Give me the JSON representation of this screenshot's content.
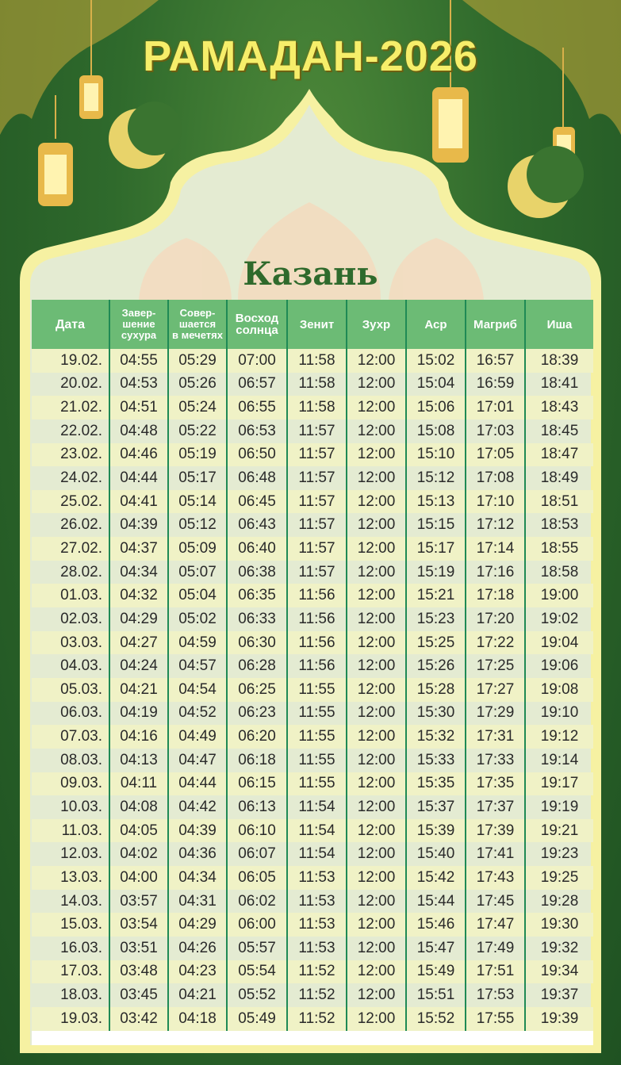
{
  "title": "РАМАДАН-2026",
  "city": "Казань",
  "colors": {
    "background": "#2f6a2c",
    "frame": "#f6f1a2",
    "header": "#6cbb75",
    "stripe": "#f0f2c6",
    "title": "#f6ee6a"
  },
  "table": {
    "headers": [
      [
        "Дата"
      ],
      [
        "Завер-",
        "шение",
        "сухура"
      ],
      [
        "Совер-",
        "шается",
        "в мечетях"
      ],
      [
        "Восход",
        "солнца"
      ],
      [
        "Зенит"
      ],
      [
        "Зухр"
      ],
      [
        "Аср"
      ],
      [
        "Магриб"
      ],
      [
        "Иша"
      ]
    ],
    "rows": [
      [
        "19.02.",
        "04:55",
        "05:29",
        "07:00",
        "11:58",
        "12:00",
        "15:02",
        "16:57",
        "18:39"
      ],
      [
        "20.02.",
        "04:53",
        "05:26",
        "06:57",
        "11:58",
        "12:00",
        "15:04",
        "16:59",
        "18:41"
      ],
      [
        "21.02.",
        "04:51",
        "05:24",
        "06:55",
        "11:58",
        "12:00",
        "15:06",
        "17:01",
        "18:43"
      ],
      [
        "22.02.",
        "04:48",
        "05:22",
        "06:53",
        "11:57",
        "12:00",
        "15:08",
        "17:03",
        "18:45"
      ],
      [
        "23.02.",
        "04:46",
        "05:19",
        "06:50",
        "11:57",
        "12:00",
        "15:10",
        "17:05",
        "18:47"
      ],
      [
        "24.02.",
        "04:44",
        "05:17",
        "06:48",
        "11:57",
        "12:00",
        "15:12",
        "17:08",
        "18:49"
      ],
      [
        "25.02.",
        "04:41",
        "05:14",
        "06:45",
        "11:57",
        "12:00",
        "15:13",
        "17:10",
        "18:51"
      ],
      [
        "26.02.",
        "04:39",
        "05:12",
        "06:43",
        "11:57",
        "12:00",
        "15:15",
        "17:12",
        "18:53"
      ],
      [
        "27.02.",
        "04:37",
        "05:09",
        "06:40",
        "11:57",
        "12:00",
        "15:17",
        "17:14",
        "18:55"
      ],
      [
        "28.02.",
        "04:34",
        "05:07",
        "06:38",
        "11:57",
        "12:00",
        "15:19",
        "17:16",
        "18:58"
      ],
      [
        "01.03.",
        "04:32",
        "05:04",
        "06:35",
        "11:56",
        "12:00",
        "15:21",
        "17:18",
        "19:00"
      ],
      [
        "02.03.",
        "04:29",
        "05:02",
        "06:33",
        "11:56",
        "12:00",
        "15:23",
        "17:20",
        "19:02"
      ],
      [
        "03.03.",
        "04:27",
        "04:59",
        "06:30",
        "11:56",
        "12:00",
        "15:25",
        "17:22",
        "19:04"
      ],
      [
        "04.03.",
        "04:24",
        "04:57",
        "06:28",
        "11:56",
        "12:00",
        "15:26",
        "17:25",
        "19:06"
      ],
      [
        "05.03.",
        "04:21",
        "04:54",
        "06:25",
        "11:55",
        "12:00",
        "15:28",
        "17:27",
        "19:08"
      ],
      [
        "06.03.",
        "04:19",
        "04:52",
        "06:23",
        "11:55",
        "12:00",
        "15:30",
        "17:29",
        "19:10"
      ],
      [
        "07.03.",
        "04:16",
        "04:49",
        "06:20",
        "11:55",
        "12:00",
        "15:32",
        "17:31",
        "19:12"
      ],
      [
        "08.03.",
        "04:13",
        "04:47",
        "06:18",
        "11:55",
        "12:00",
        "15:33",
        "17:33",
        "19:14"
      ],
      [
        "09.03.",
        "04:11",
        "04:44",
        "06:15",
        "11:55",
        "12:00",
        "15:35",
        "17:35",
        "19:17"
      ],
      [
        "10.03.",
        "04:08",
        "04:42",
        "06:13",
        "11:54",
        "12:00",
        "15:37",
        "17:37",
        "19:19"
      ],
      [
        "11.03.",
        "04:05",
        "04:39",
        "06:10",
        "11:54",
        "12:00",
        "15:39",
        "17:39",
        "19:21"
      ],
      [
        "12.03.",
        "04:02",
        "04:36",
        "06:07",
        "11:54",
        "12:00",
        "15:40",
        "17:41",
        "19:23"
      ],
      [
        "13.03.",
        "04:00",
        "04:34",
        "06:05",
        "11:53",
        "12:00",
        "15:42",
        "17:43",
        "19:25"
      ],
      [
        "14.03.",
        "03:57",
        "04:31",
        "06:02",
        "11:53",
        "12:00",
        "15:44",
        "17:45",
        "19:28"
      ],
      [
        "15.03.",
        "03:54",
        "04:29",
        "06:00",
        "11:53",
        "12:00",
        "15:46",
        "17:47",
        "19:30"
      ],
      [
        "16.03.",
        "03:51",
        "04:26",
        "05:57",
        "11:53",
        "12:00",
        "15:47",
        "17:49",
        "19:32"
      ],
      [
        "17.03.",
        "03:48",
        "04:23",
        "05:54",
        "11:52",
        "12:00",
        "15:49",
        "17:51",
        "19:34"
      ],
      [
        "18.03.",
        "03:45",
        "04:21",
        "05:52",
        "11:52",
        "12:00",
        "15:51",
        "17:53",
        "19:37"
      ],
      [
        "19.03.",
        "03:42",
        "04:18",
        "05:49",
        "11:52",
        "12:00",
        "15:52",
        "17:55",
        "19:39"
      ]
    ]
  }
}
